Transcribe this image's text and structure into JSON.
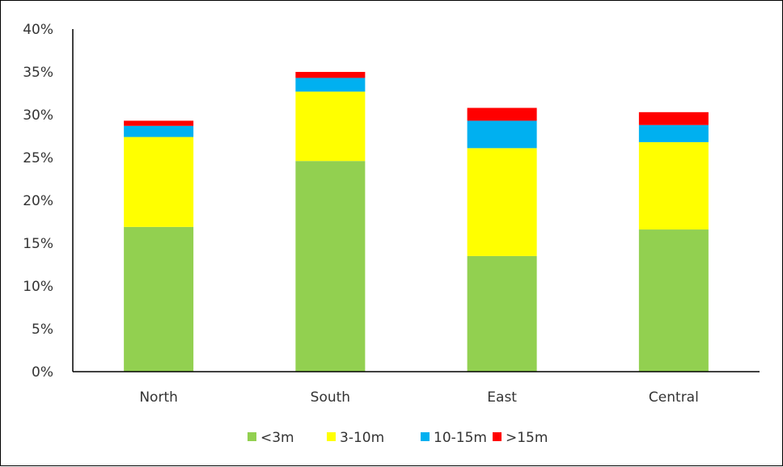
{
  "chart_data": {
    "type": "bar",
    "stacked": true,
    "categories": [
      "North",
      "South",
      "East",
      "Central"
    ],
    "series": [
      {
        "name": "<3m",
        "values": [
          16.9,
          24.6,
          13.5,
          16.6
        ],
        "color": "#92d050"
      },
      {
        "name": "3-10m",
        "values": [
          10.5,
          8.1,
          12.6,
          10.2
        ],
        "color": "#ffff00"
      },
      {
        "name": "10-15m",
        "values": [
          1.3,
          1.6,
          3.2,
          2.0
        ],
        "color": "#00b0f0"
      },
      {
        "name": ">15m",
        "values": [
          0.6,
          0.7,
          1.5,
          1.5
        ],
        "color": "#ff0000"
      }
    ],
    "y_ticks": [
      "0%",
      "5%",
      "10%",
      "15%",
      "20%",
      "25%",
      "30%",
      "35%",
      "40%"
    ],
    "ylim": [
      0,
      40
    ],
    "y_format": "percent",
    "grid": false,
    "legend_position": "bottom"
  }
}
